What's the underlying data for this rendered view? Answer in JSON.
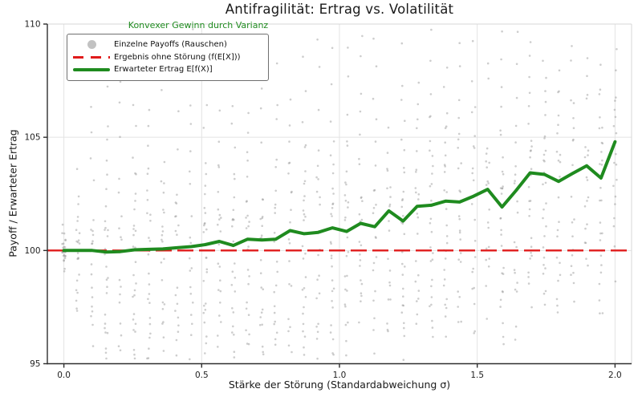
{
  "chart_data": {
    "type": "scatter+line",
    "title": "Antifragilität: Ertrag vs. Volatilität",
    "xlabel": "Stärke der Störung (Standardabweichung σ)",
    "ylabel": "Payoff / Erwarteter Ertrag",
    "annotation": "Konvexer Gewinn durch Varianz",
    "xlim": [
      -0.06,
      2.06
    ],
    "ylim": [
      95,
      110
    ],
    "xticks": [
      {
        "v": 0.0,
        "label": "0.0"
      },
      {
        "v": 0.5,
        "label": "0.5"
      },
      {
        "v": 1.0,
        "label": "1.0"
      },
      {
        "v": 1.5,
        "label": "1.5"
      },
      {
        "v": 2.0,
        "label": "2.0"
      }
    ],
    "yticks": [
      {
        "v": 95,
        "label": "95"
      },
      {
        "v": 100,
        "label": "100"
      },
      {
        "v": 105,
        "label": "105"
      },
      {
        "v": 110,
        "label": "110"
      }
    ],
    "grid": "on",
    "legend_position": "upper left",
    "colors": {
      "line": "#1f8b1f",
      "baseline": "#e01b1b",
      "scatter": "#909090",
      "legend_dot": "#c2c2c2",
      "grid": "#e3e3e3",
      "spine": "#2e2e2e",
      "spine_light": "#d7d7d7",
      "tick_text": "#222222",
      "annotation": "#1f8b1f"
    },
    "legend": [
      {
        "marker": "dot",
        "label": "Einzelne Payoffs (Rauschen)"
      },
      {
        "marker": "dashed",
        "label": "Ergebnis ohne Störung (f(E[X]))"
      },
      {
        "marker": "solid",
        "label": "Erwarteter Ertrag E[f(X)]"
      }
    ],
    "baseline_y": 100,
    "expected_line": {
      "x": [
        0.0,
        0.051,
        0.103,
        0.154,
        0.205,
        0.256,
        0.308,
        0.359,
        0.41,
        0.462,
        0.513,
        0.564,
        0.615,
        0.667,
        0.718,
        0.769,
        0.821,
        0.872,
        0.923,
        0.974,
        1.026,
        1.077,
        1.128,
        1.179,
        1.231,
        1.282,
        1.333,
        1.385,
        1.436,
        1.487,
        1.538,
        1.59,
        1.641,
        1.692,
        1.744,
        1.795,
        1.846,
        1.897,
        1.949,
        2.0
      ],
      "y": [
        100.0,
        100.0,
        100.0,
        99.93,
        99.95,
        100.03,
        100.05,
        100.07,
        100.12,
        100.17,
        100.26,
        100.4,
        100.22,
        100.5,
        100.46,
        100.5,
        100.88,
        100.74,
        100.8,
        101.0,
        100.84,
        101.2,
        101.05,
        101.75,
        101.3,
        101.95,
        102.0,
        102.18,
        102.14,
        102.4,
        102.7,
        101.92,
        102.65,
        103.43,
        103.36,
        103.05,
        103.4,
        103.74,
        103.2,
        104.8
      ]
    },
    "scatter": {
      "points_per_column": 30,
      "opacity": 0.45,
      "dot_radius": 1.3,
      "spreads": [
        0.25,
        1.0,
        1.9,
        2.2,
        2.4,
        2.1,
        2.5,
        2.3,
        2.2,
        2.5,
        2.3,
        2.1,
        2.4,
        2.6,
        2.2,
        2.4,
        2.3,
        2.5,
        2.2,
        2.4,
        2.5,
        2.2,
        2.6,
        2.3,
        2.4,
        2.2,
        2.5,
        2.4,
        2.3,
        2.5,
        2.2,
        2.4,
        2.6,
        2.3,
        2.4,
        2.5,
        2.3,
        2.4,
        2.5,
        2.4
      ],
      "noise_table": [
        0.1,
        -0.3,
        0.6,
        -0.85,
        1.2,
        -1.55,
        2.1,
        -2.25,
        0.4,
        -0.12,
        0.75,
        -0.5,
        1.45,
        -1.1,
        2.6,
        -1.85,
        0.22,
        -0.65,
        0.95,
        -1.3,
        1.7,
        -2.05,
        3.2,
        -0.98,
        0.5,
        -1.7,
        3.9,
        -1.42,
        0.3,
        -2.45
      ]
    }
  }
}
